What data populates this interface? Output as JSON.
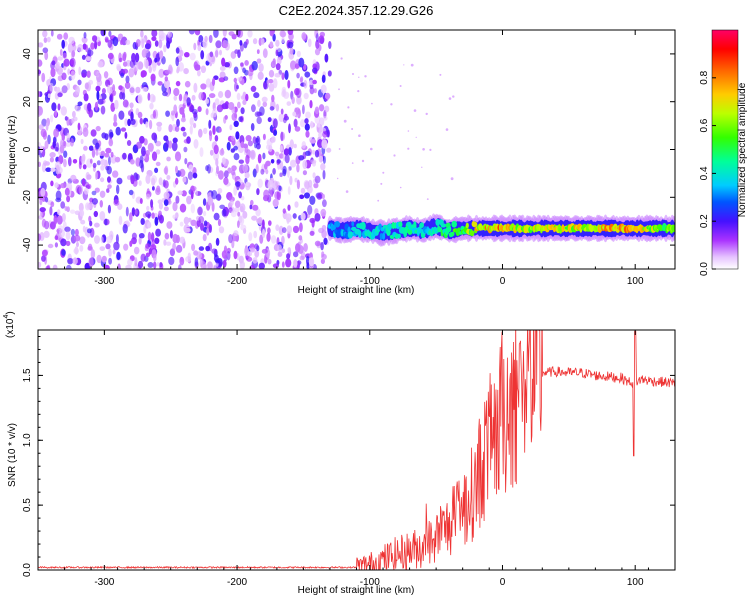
{
  "title": "C2E2.2024.357.12.29.G26",
  "chart_data": [
    {
      "type": "heatmap",
      "xlabel": "Height of straight line (km)",
      "ylabel": "Frequency (Hz)",
      "xlim": [
        -350,
        130
      ],
      "ylim": [
        -50,
        50
      ],
      "xticks": [
        -300,
        -200,
        -100,
        0,
        100
      ],
      "yticks": [
        -40,
        -20,
        0,
        20,
        40
      ],
      "noise_region_x": [
        -350,
        -130
      ],
      "signal_track": {
        "x": [
          -130,
          -120,
          -110,
          -100,
          -90,
          -80,
          -70,
          -60,
          -50,
          -40,
          -30,
          -20,
          -10,
          0,
          10,
          30,
          50,
          70,
          90,
          110,
          130
        ],
        "frequency": [
          -33,
          -34,
          -33,
          -34,
          -35,
          -34,
          -33,
          -34,
          -32,
          -34,
          -33,
          -33,
          -33,
          -33,
          -33,
          -33,
          -33,
          -33,
          -33,
          -33,
          -33
        ],
        "amplitude": [
          0.35,
          0.35,
          0.4,
          0.4,
          0.4,
          0.45,
          0.45,
          0.4,
          0.45,
          0.5,
          0.55,
          0.75,
          0.8,
          0.8,
          0.7,
          0.7,
          0.7,
          0.75,
          0.8,
          0.7,
          0.6
        ]
      },
      "colorbar": {
        "label": "Normalized spectral amplitude",
        "ticks": [
          "0.0",
          "0.2",
          "0.4",
          "0.6",
          "0.8"
        ],
        "range": [
          0,
          1
        ],
        "colors": [
          "#ffffff",
          "#cc33ff",
          "#6600ff",
          "#0033ff",
          "#00ccff",
          "#00ff99",
          "#33ff00",
          "#ccff00",
          "#ffcc00",
          "#ff6600",
          "#ff0000",
          "#ff0066"
        ]
      }
    },
    {
      "type": "line",
      "xlabel": "Height of straight line (km)",
      "ylabel": "SNR (10 * v/v)",
      "multiplier": "(x10",
      "multiplier_exp": "4",
      "xlim": [
        -350,
        130
      ],
      "ylim": [
        0,
        1.85
      ],
      "xticks": [
        -300,
        -200,
        -100,
        0,
        100
      ],
      "yticks": [
        "0.0",
        "0.5",
        "1.0",
        "1.5"
      ],
      "series": [
        {
          "color": "#ee3333",
          "x": [
            -350,
            -300,
            -200,
            -150,
            -110,
            -100,
            -90,
            -80,
            -70,
            -60,
            -50,
            -40,
            -30,
            -25,
            -20,
            -15,
            -10,
            -5,
            0,
            5,
            10,
            15,
            20,
            25,
            30,
            40,
            50,
            60,
            70,
            80,
            90,
            95,
            100,
            105,
            110,
            120,
            130
          ],
          "values": [
            0.02,
            0.02,
            0.02,
            0.02,
            0.02,
            0.04,
            0.08,
            0.12,
            0.15,
            0.18,
            0.25,
            0.35,
            0.45,
            0.55,
            0.65,
            0.85,
            0.95,
            1.05,
            1.2,
            1.3,
            1.38,
            1.44,
            1.48,
            1.5,
            1.52,
            1.53,
            1.52,
            1.52,
            1.5,
            1.49,
            1.48,
            1.45,
            1.45,
            1.47,
            1.46,
            1.45,
            1.44
          ]
        }
      ]
    }
  ]
}
